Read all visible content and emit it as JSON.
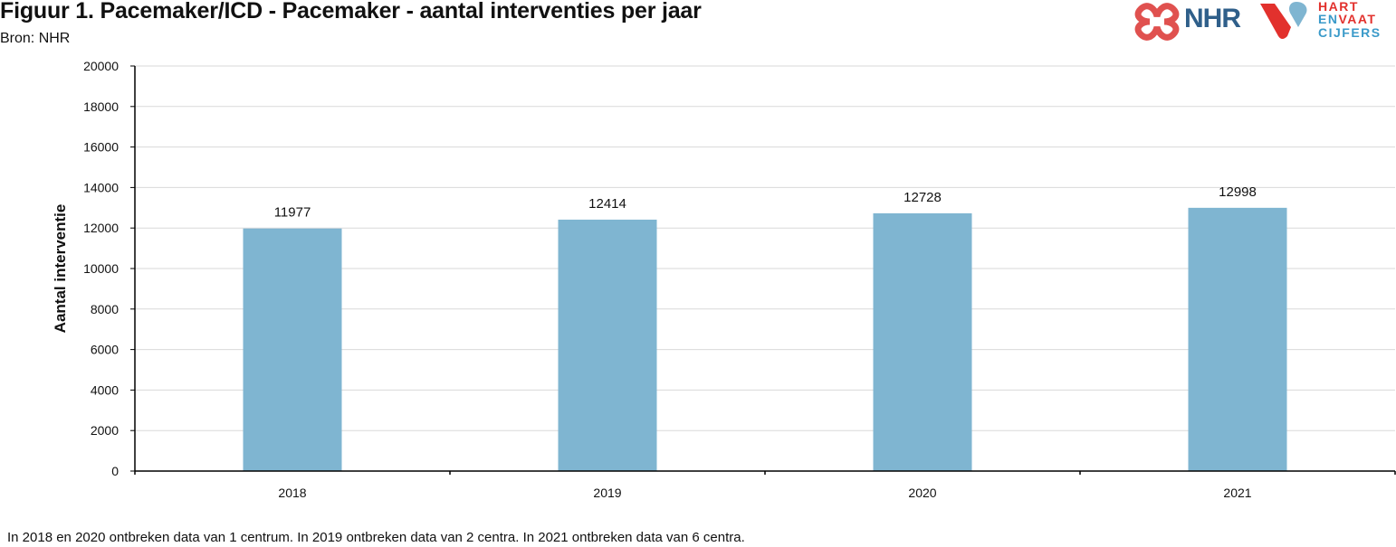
{
  "header": {
    "title": "Figuur 1. Pacemaker/ICD - Pacemaker - aantal interventies per jaar",
    "subtitle": "Bron: NHR"
  },
  "logos": {
    "nhr_text": "NHR",
    "hart": "HART",
    "en": "EN",
    "vaat": "VAAT",
    "cijfers": "CIJFERS"
  },
  "colors": {
    "bar": "#7fb5d1",
    "grid": "#d9d9d9",
    "axis": "#000000",
    "nhr_red": "#e0514f",
    "nhr_blue": "#2f5f8a",
    "hev_red": "#e2312d",
    "hev_blue": "#3a9ac9"
  },
  "chart_data": {
    "type": "bar",
    "categories": [
      "2018",
      "2019",
      "2020",
      "2021"
    ],
    "values": [
      11977,
      12414,
      12728,
      12998
    ],
    "data_labels": [
      "11977",
      "12414",
      "12728",
      "12998"
    ],
    "ylabel": "Aantal interventie",
    "xlabel": "",
    "ylim": [
      0,
      20000
    ],
    "yticks": [
      0,
      2000,
      4000,
      6000,
      8000,
      10000,
      12000,
      14000,
      16000,
      18000,
      20000
    ],
    "grid": true,
    "legend": "none"
  },
  "footnote": "In 2018 en 2020 ontbreken data van 1 centrum. In 2019 ontbreken data van 2 centra. In 2021 ontbreken data van 6 centra."
}
